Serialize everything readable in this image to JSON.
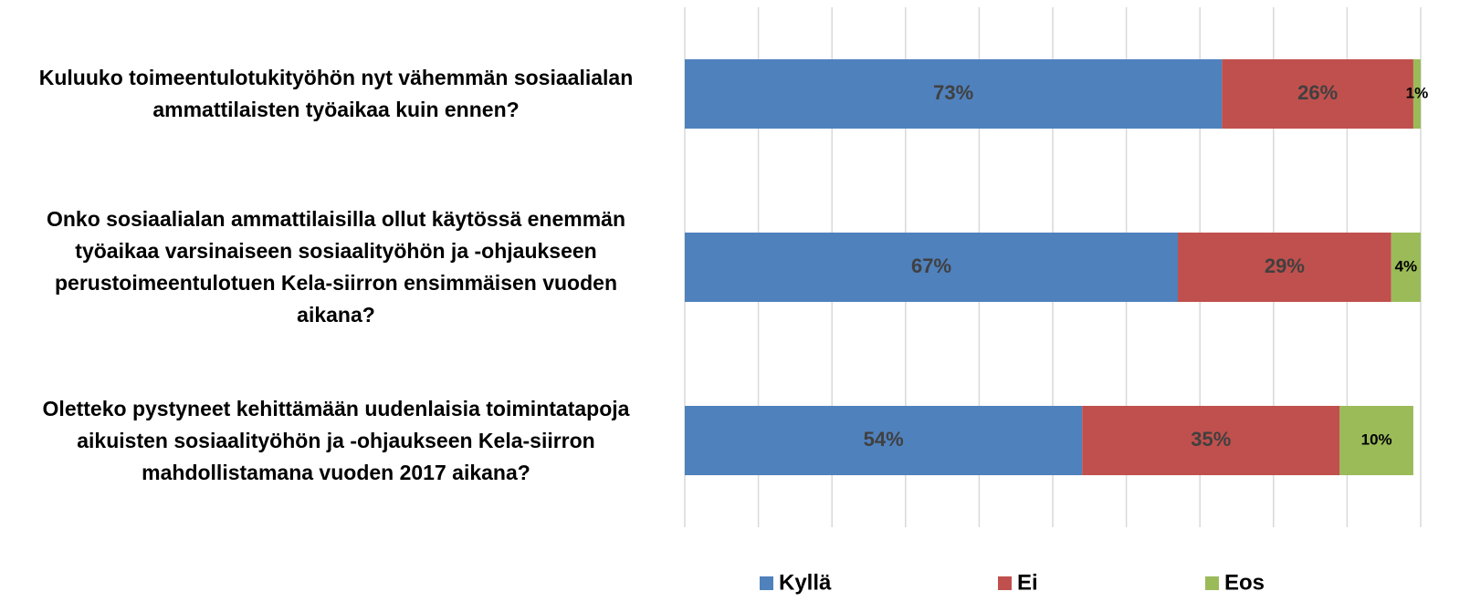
{
  "chart_data": {
    "type": "stacked-barh",
    "categories": [
      "Kuluuko toimeentulotukityöhön nyt vähemmän sosiaalialan\nammattilaisten työaikaa kuin ennen?",
      "Onko sosiaalialan ammattilaisilla ollut käytössä enemmän\ntyöaikaa varsinaiseen sosiaalityöhön ja -ohjaukseen\nperustoimeentulotuen Kela-siirron ensimmäisen vuoden\naikana?",
      "Oletteko pystyneet kehittämään uudenlaisia toimintatapoja\naikuisten sosiaalityöhön ja -ohjaukseen Kela-siirron\nmahdollistamana vuoden 2017 aikana?"
    ],
    "series": [
      {
        "name": "Kyllä",
        "color": "#4f81bd",
        "values": [
          73,
          67,
          54
        ],
        "value_labels": [
          "73%",
          "67%",
          "54%"
        ]
      },
      {
        "name": "Ei",
        "color": "#c0504d",
        "values": [
          26,
          29,
          35
        ],
        "value_labels": [
          "26%",
          "29%",
          "35%"
        ]
      },
      {
        "name": "Eos",
        "color": "#9bbb59",
        "values": [
          1,
          4,
          10
        ],
        "value_labels": [
          "1%",
          "4%",
          "10%"
        ]
      }
    ],
    "xlim": [
      0,
      100
    ],
    "xticks": [
      0,
      10,
      20,
      30,
      40,
      50,
      60,
      70,
      80,
      90,
      100
    ],
    "grid": true,
    "legend": "bottom"
  }
}
